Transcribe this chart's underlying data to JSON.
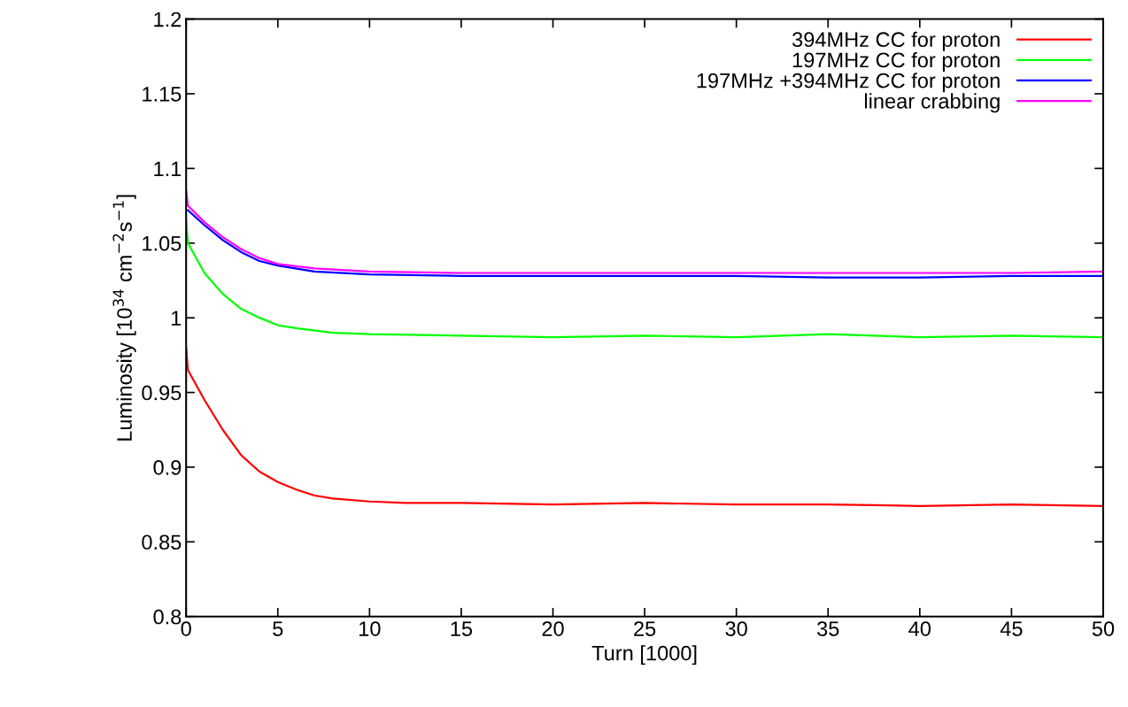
{
  "chart_data": {
    "type": "line",
    "xlabel": "Turn [1000]",
    "ylabel": "Luminosity [10$^{34}$ cm$^{−2}$s$^{−1}$]",
    "xlim": [
      0,
      50
    ],
    "xticks": [
      0,
      5,
      10,
      15,
      20,
      25,
      30,
      35,
      40,
      45,
      50
    ],
    "ylim": [
      0.8,
      1.2
    ],
    "yticks": [
      0.8,
      0.85,
      0.9,
      0.95,
      1,
      1.05,
      1.1,
      1.15,
      1.2
    ],
    "grid": false,
    "legend": "top right",
    "marker": "none",
    "line_style": "solid",
    "series": [
      {
        "name": "394MHz CC for proton",
        "color": "#ff0000",
        "x": [
          0,
          0.1,
          1,
          2,
          3,
          4,
          5,
          6,
          7,
          8,
          10,
          12,
          15,
          20,
          25,
          30,
          35,
          40,
          45,
          50
        ],
        "values": [
          0.98,
          0.965,
          0.945,
          0.925,
          0.908,
          0.897,
          0.89,
          0.885,
          0.881,
          0.879,
          0.877,
          0.876,
          0.876,
          0.875,
          0.876,
          0.875,
          0.875,
          0.874,
          0.875,
          0.874
        ]
      },
      {
        "name": "197MHz CC for proton",
        "color": "#00ff00",
        "x": [
          0,
          0.1,
          1,
          2,
          3,
          4,
          5,
          6,
          8,
          10,
          15,
          20,
          25,
          30,
          35,
          40,
          45,
          50
        ],
        "values": [
          1.065,
          1.05,
          1.03,
          1.016,
          1.006,
          1.0,
          0.995,
          0.993,
          0.99,
          0.989,
          0.988,
          0.987,
          0.988,
          0.987,
          0.989,
          0.987,
          0.988,
          0.987
        ]
      },
      {
        "name": "197MHz +394MHz CC for proton",
        "color": "#0000ff",
        "x": [
          0.1,
          1,
          2,
          3,
          4,
          5,
          7,
          10,
          15,
          20,
          25,
          30,
          35,
          40,
          45,
          50
        ],
        "values": [
          1.072,
          1.062,
          1.052,
          1.044,
          1.038,
          1.035,
          1.031,
          1.029,
          1.028,
          1.028,
          1.028,
          1.028,
          1.027,
          1.027,
          1.028,
          1.028
        ]
      },
      {
        "name": "linear crabbing",
        "color": "#ff00ff",
        "x": [
          0,
          0.1,
          1,
          2,
          3,
          4,
          5,
          7,
          10,
          15,
          20,
          25,
          30,
          35,
          40,
          45,
          50
        ],
        "values": [
          1.085,
          1.075,
          1.064,
          1.054,
          1.046,
          1.04,
          1.036,
          1.033,
          1.031,
          1.03,
          1.03,
          1.03,
          1.03,
          1.03,
          1.03,
          1.03,
          1.031
        ]
      }
    ]
  }
}
